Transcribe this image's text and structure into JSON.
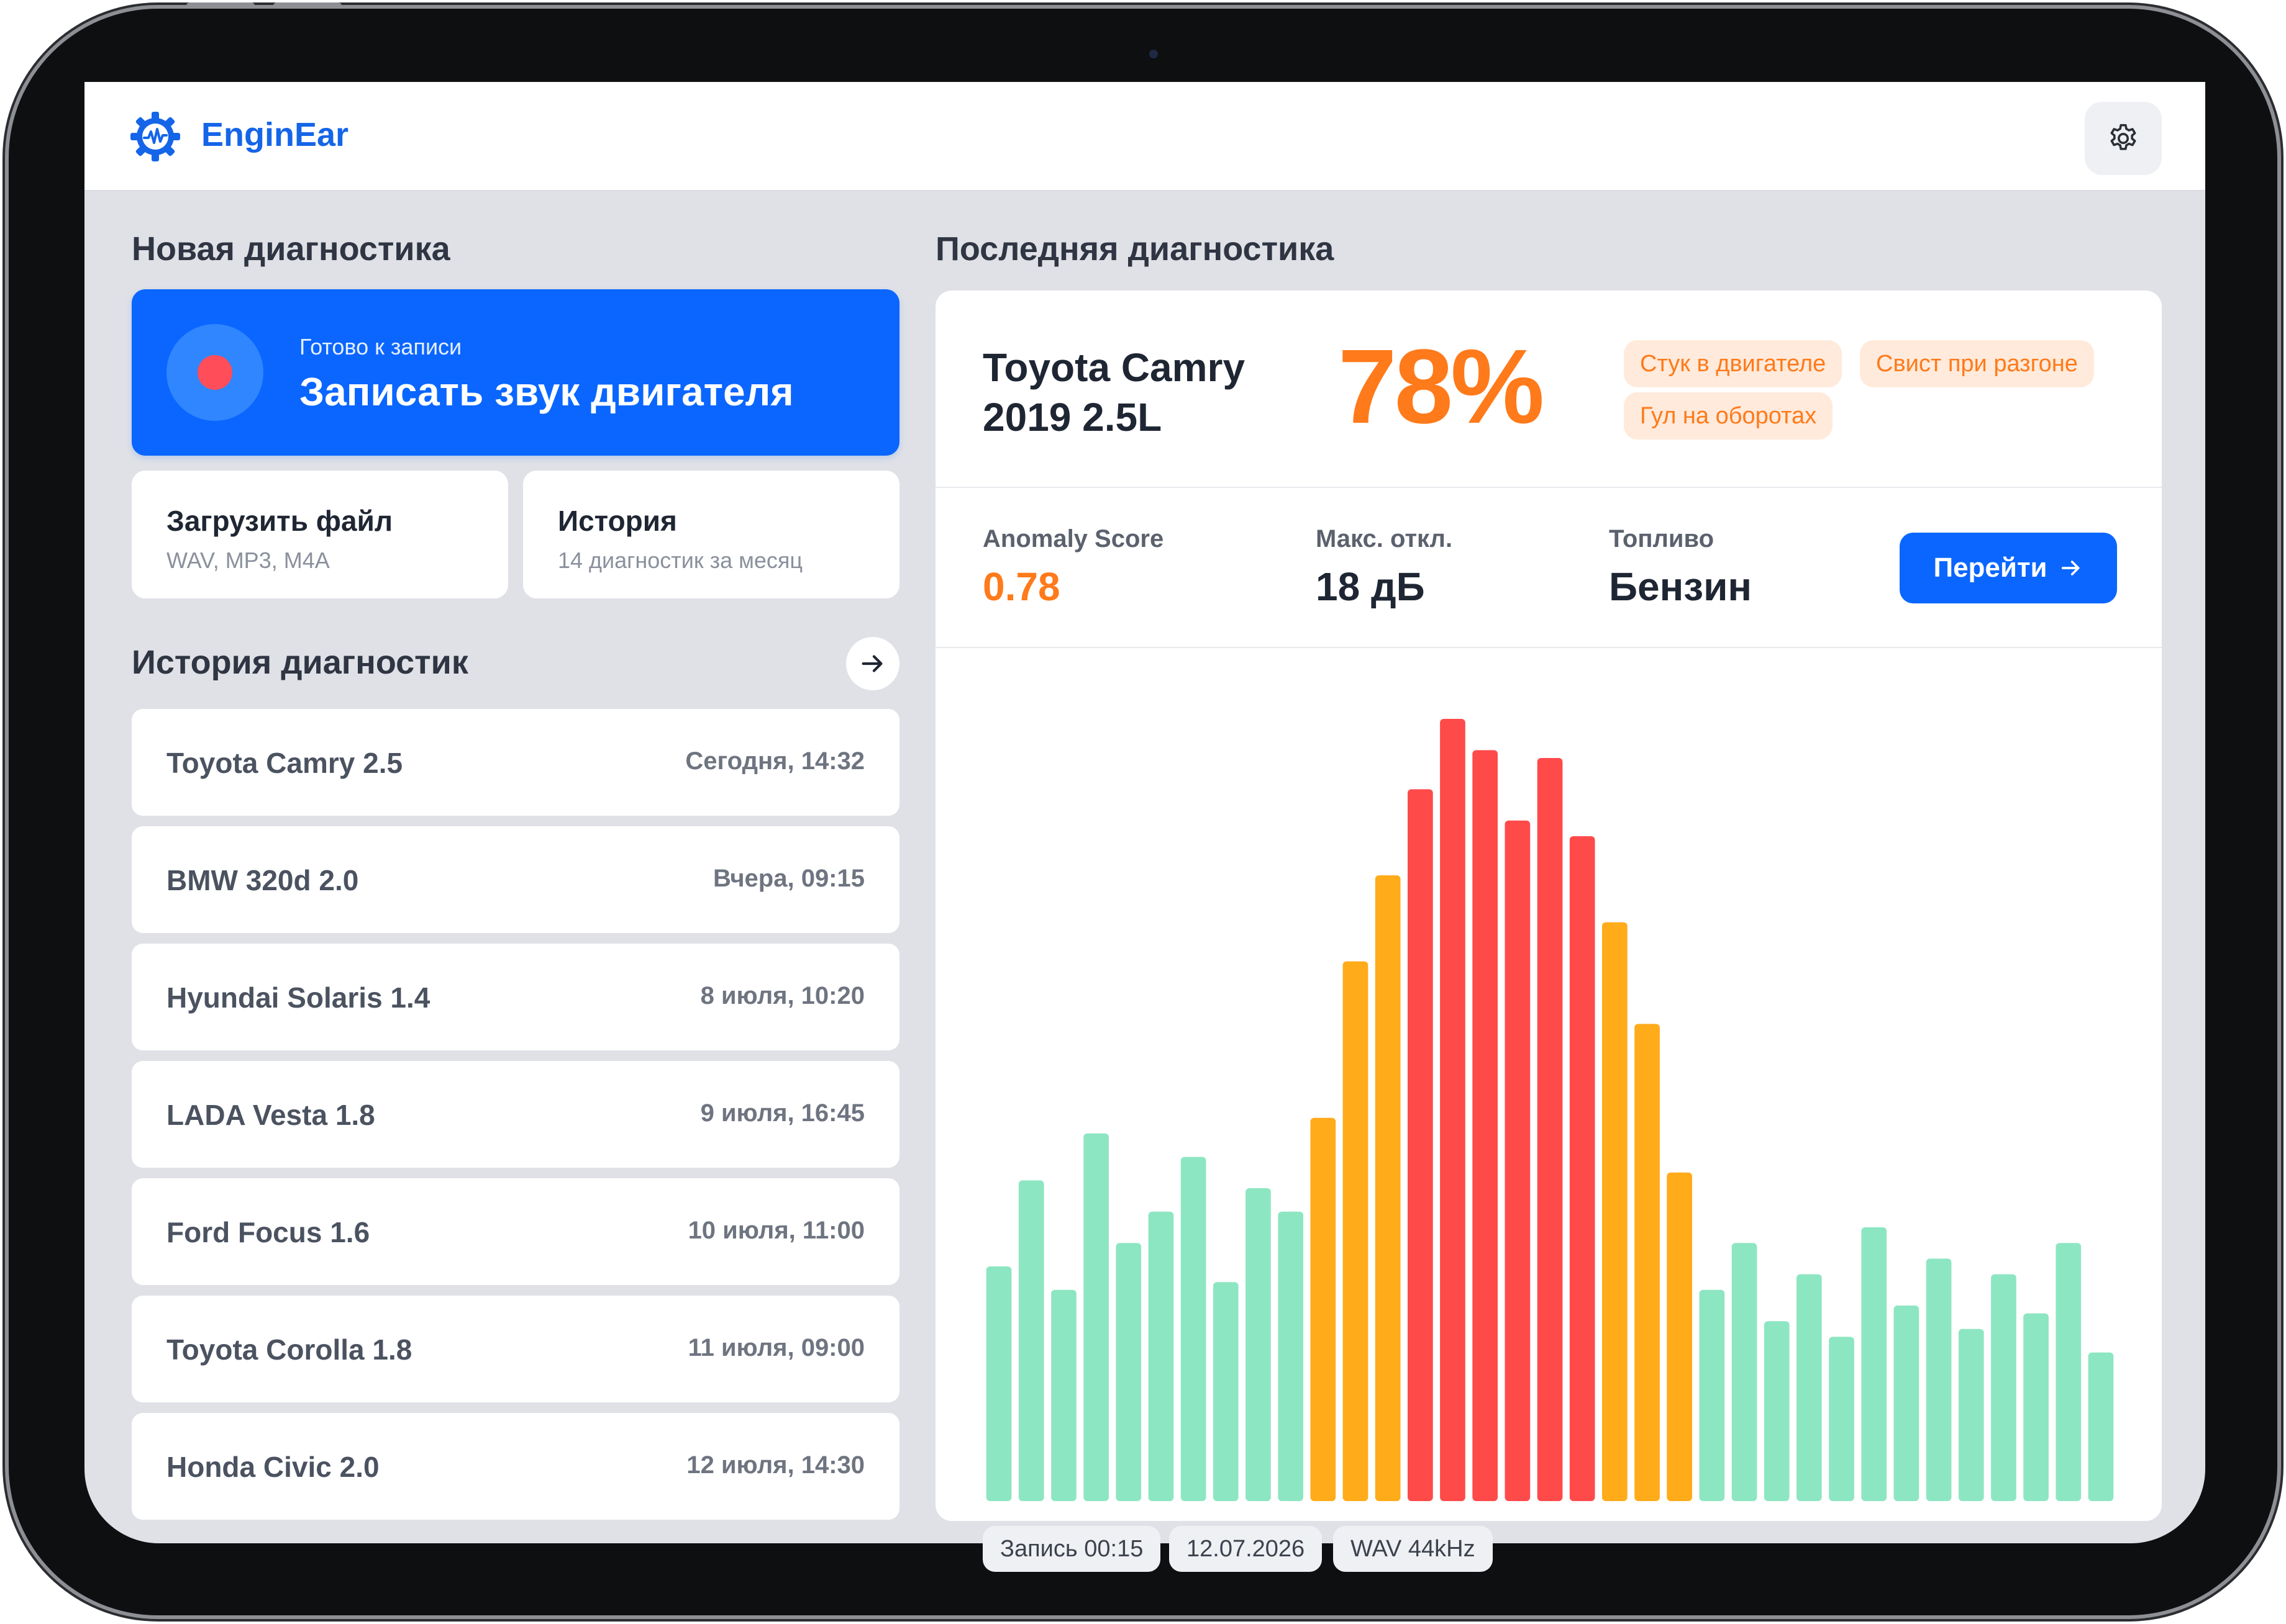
{
  "app": {
    "name": "EnginEar"
  },
  "colors": {
    "accent": "#0a66ff",
    "score": "#ff7a1a",
    "bar_normal": "#8de6c2",
    "bar_warn": "#ffab1a",
    "bar_critical": "#ff4a4a"
  },
  "new_diagnostic": {
    "title": "Новая диагностика",
    "record": {
      "subtitle": "Готово к записи",
      "label": "Записать звук двигателя"
    },
    "upload": {
      "title": "Загрузить файл",
      "subtitle": "WAV, MP3, M4A"
    },
    "history": {
      "title": "История",
      "subtitle": "14 диагностик за месяц"
    }
  },
  "history": {
    "title": "История диагностик",
    "items": [
      {
        "car": "Toyota Camry 2.5",
        "date": "Сегодня, 14:32"
      },
      {
        "car": "BMW 320d 2.0",
        "date": "Вчера, 09:15"
      },
      {
        "car": "Hyundai Solaris 1.4",
        "date": "8 июля, 10:20"
      },
      {
        "car": "LADA Vesta 1.8",
        "date": "9 июля, 16:45"
      },
      {
        "car": "Ford Focus 1.6",
        "date": "10 июля, 11:00"
      },
      {
        "car": "Toyota Corolla 1.8",
        "date": "11 июля, 09:00"
      },
      {
        "car": "Honda Civic 2.0",
        "date": "12 июля, 14:30"
      }
    ]
  },
  "last_diagnostic": {
    "title": "Последняя диагностика",
    "car_line1": "Toyota Camry",
    "car_line2": "2019 2.5L",
    "percent": "78%",
    "tags": [
      "Стук в двигателе",
      "Свист при разгоне",
      "Гул на оборотах"
    ],
    "metrics": [
      {
        "label": "Anomaly Score",
        "value": "0.78"
      },
      {
        "label": "Макс. откл.",
        "value": "18 дБ"
      },
      {
        "label": "Топливо",
        "value": "Бензин"
      }
    ],
    "go_button": "Перейти",
    "chips": [
      "Запись 00:15",
      "12.07.2026",
      "WAV 44kHz"
    ]
  },
  "chart_data": {
    "type": "bar",
    "title": "",
    "xlabel": "",
    "ylabel": "",
    "ylim": [
      0,
      100
    ],
    "grid": false,
    "legend": "none",
    "levels": [
      "normal",
      "warn",
      "critical"
    ],
    "values": [
      30,
      41,
      27,
      47,
      33,
      37,
      44,
      28,
      40,
      37,
      49,
      69,
      80,
      91,
      100,
      96,
      87,
      95,
      85,
      74,
      61,
      42,
      27,
      33,
      23,
      29,
      21,
      35,
      25,
      31,
      22,
      29,
      24,
      33,
      19
    ],
    "level_index": [
      0,
      0,
      0,
      0,
      0,
      0,
      0,
      0,
      0,
      0,
      1,
      1,
      1,
      2,
      2,
      2,
      2,
      2,
      2,
      1,
      1,
      1,
      0,
      0,
      0,
      0,
      0,
      0,
      0,
      0,
      0,
      0,
      0,
      0,
      0
    ]
  }
}
